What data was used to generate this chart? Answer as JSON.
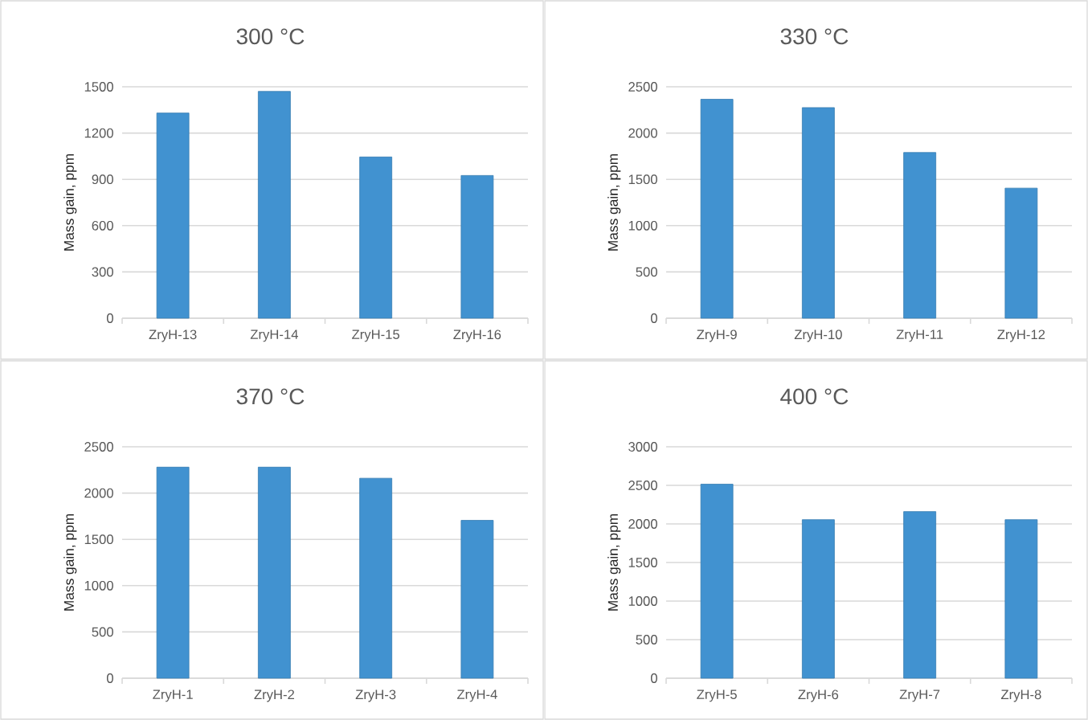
{
  "chart_data": [
    {
      "type": "bar",
      "title": "300 °C",
      "ylabel": "Mass gain, ppm",
      "categories": [
        "ZryH-13",
        "ZryH-14",
        "ZryH-15",
        "ZryH-16"
      ],
      "values": [
        1330,
        1470,
        1045,
        925
      ],
      "color": "#4192d0",
      "ylim": [
        0,
        1500
      ],
      "yticks": [
        0,
        300,
        600,
        900,
        1200,
        1500
      ],
      "grid": "y"
    },
    {
      "type": "bar",
      "title": "330 °C",
      "ylabel": "Mass gain, ppm",
      "categories": [
        "ZryH-9",
        "ZryH-10",
        "ZryH-11",
        "ZryH-12"
      ],
      "values": [
        2365,
        2275,
        1790,
        1405
      ],
      "color": "#4192d0",
      "ylim": [
        0,
        2500
      ],
      "yticks": [
        0,
        500,
        1000,
        1500,
        2000,
        2500
      ],
      "grid": "y"
    },
    {
      "type": "bar",
      "title": "370 °C",
      "ylabel": "Mass gain, ppm",
      "categories": [
        "ZryH-1",
        "ZryH-2",
        "ZryH-3",
        "ZryH-4"
      ],
      "values": [
        2280,
        2280,
        2160,
        1705
      ],
      "color": "#4192d0",
      "ylim": [
        0,
        2500
      ],
      "yticks": [
        0,
        500,
        1000,
        1500,
        2000,
        2500
      ],
      "grid": "y"
    },
    {
      "type": "bar",
      "title": "400 °C",
      "ylabel": "Mass gain, ppm",
      "categories": [
        "ZryH-5",
        "ZryH-6",
        "ZryH-7",
        "ZryH-8"
      ],
      "values": [
        2515,
        2055,
        2160,
        2055
      ],
      "color": "#4192d0",
      "ylim": [
        0,
        3000
      ],
      "yticks": [
        0,
        500,
        1000,
        1500,
        2000,
        2500,
        3000
      ],
      "grid": "y"
    }
  ]
}
